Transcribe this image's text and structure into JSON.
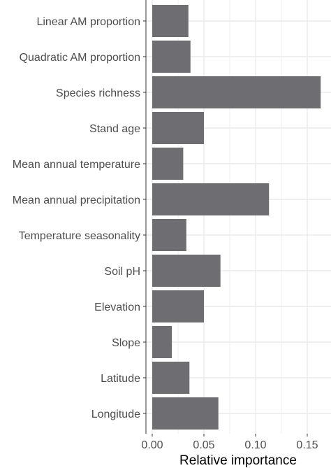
{
  "chart_data": {
    "type": "bar",
    "orientation": "horizontal",
    "categories": [
      "Linear AM proportion",
      "Quadratic AM proportion",
      "Species richness",
      "Stand age",
      "Mean annual temperature",
      "Mean annual precipitation",
      "Temperature seasonality",
      "Soil pH",
      "Elevation",
      "Slope",
      "Latitude",
      "Longitude"
    ],
    "values": [
      0.035,
      0.037,
      0.163,
      0.05,
      0.03,
      0.113,
      0.033,
      0.066,
      0.05,
      0.019,
      0.036,
      0.064
    ],
    "xlabel": "Relative importance",
    "ylabel": "",
    "xlim": [
      0,
      0.17
    ],
    "x_ticks": [
      0.0,
      0.05,
      0.1,
      0.15
    ],
    "x_tick_labels": [
      "0.00",
      "0.05",
      "0.10",
      "0.15"
    ],
    "grid": true,
    "bar_color": "#6e6e72",
    "grid_color": "#ebebeb",
    "axis_color": "#333333"
  }
}
